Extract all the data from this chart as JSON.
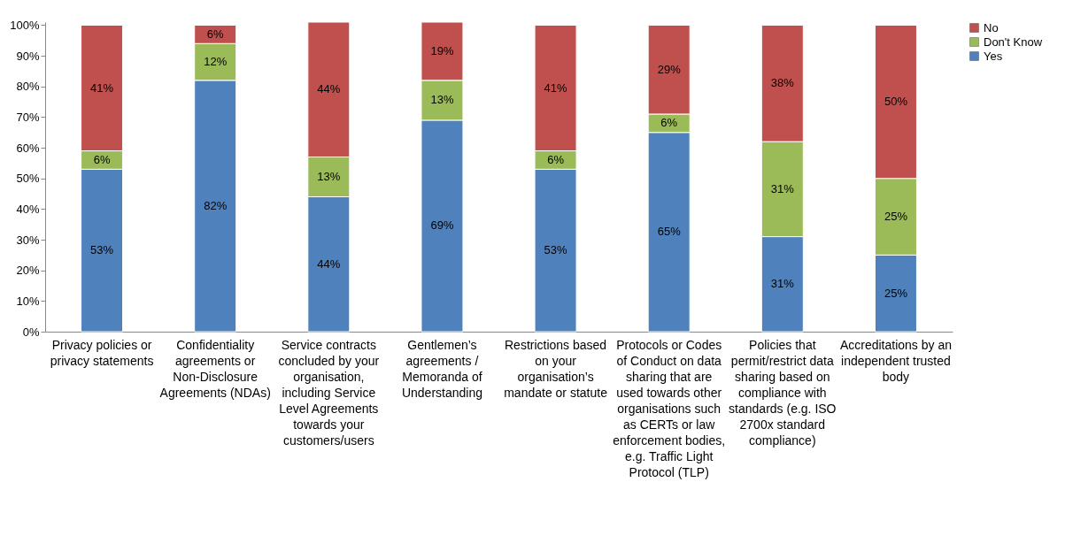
{
  "chart_data": {
    "type": "bar",
    "stacked": true,
    "categories": [
      "Privacy policies or privacy statements",
      "Confidentiality agreements or Non-Disclosure Agreements (NDAs)",
      "Service contracts concluded by your organisation, including Service Level Agreements towards your customers/users",
      "Gentlemen’s agreements / Memoranda of Understanding",
      "Restrictions based on your organisation’s mandate or statute",
      "Protocols or Codes of Conduct on data sharing that are used towards other organisations such as CERTs or law enforcement bodies, e.g. Traffic Light Protocol (TLP)",
      "Policies that permit/restrict data sharing based on compliance with standards (e.g. ISO 2700x standard compliance)",
      "Accreditations by an independent trusted body"
    ],
    "series": [
      {
        "name": "Yes",
        "color": "#4f81bd",
        "values": [
          53,
          82,
          44,
          69,
          53,
          65,
          31,
          25
        ],
        "value_labels": [
          "53%",
          "82%",
          "44%",
          "69%",
          "53%",
          "65%",
          "31%",
          "25%"
        ]
      },
      {
        "name": "Don't Know",
        "color": "#9bbb59",
        "values": [
          6,
          12,
          13,
          13,
          6,
          6,
          31,
          25
        ],
        "value_labels": [
          "6%",
          "12%",
          "13%",
          "13%",
          "6%",
          "6%",
          "31%",
          "25%"
        ]
      },
      {
        "name": "No",
        "color": "#c0504d",
        "values": [
          41,
          6,
          44,
          19,
          41,
          29,
          38,
          50
        ],
        "value_labels": [
          "41%",
          "6%",
          "44%",
          "19%",
          "41%",
          "29%",
          "38%",
          "50%"
        ]
      }
    ],
    "ylim": [
      0,
      101
    ],
    "yticks": [
      {
        "value": 0,
        "label": "0%"
      },
      {
        "value": 10,
        "label": "10%"
      },
      {
        "value": 20,
        "label": "20%"
      },
      {
        "value": 30,
        "label": "30%"
      },
      {
        "value": 40,
        "label": "40%"
      },
      {
        "value": 50,
        "label": "50%"
      },
      {
        "value": 60,
        "label": "60%"
      },
      {
        "value": 70,
        "label": "70%"
      },
      {
        "value": 80,
        "label": "80%"
      },
      {
        "value": 90,
        "label": "90%"
      },
      {
        "value": 100,
        "label": "100%"
      }
    ],
    "grid": false,
    "legend": "right"
  }
}
